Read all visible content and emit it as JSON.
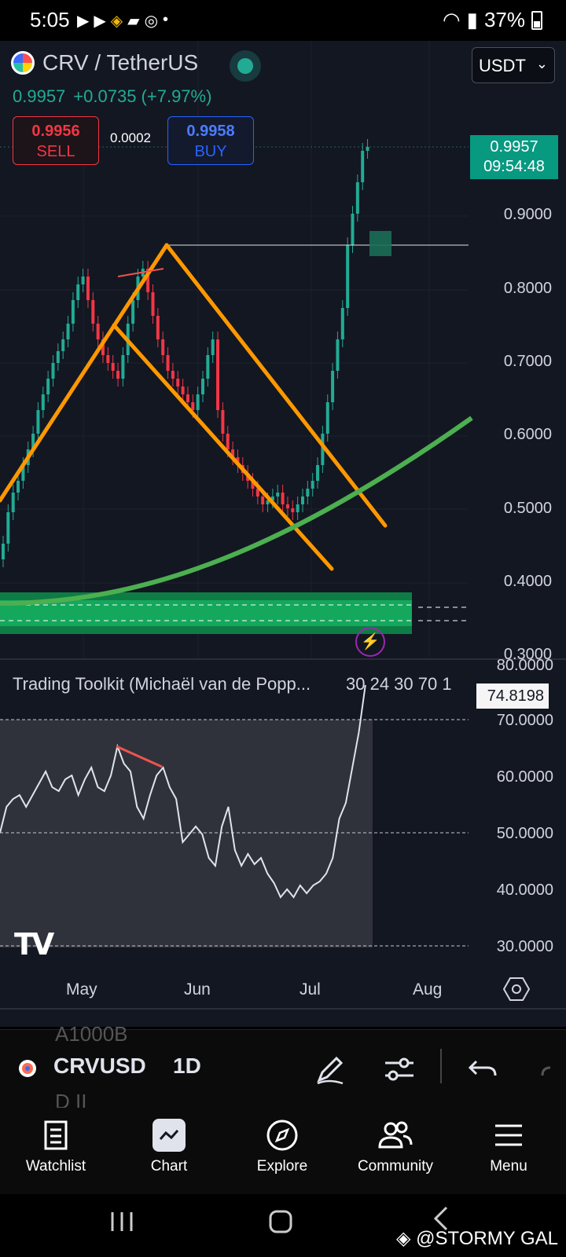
{
  "status_bar": {
    "time": "5:05",
    "battery": "37%",
    "left_icons": [
      "youtube-icon",
      "youtube-icon",
      "binance-icon",
      "cards-icon",
      "coinmarketcap-icon",
      "dot-icon"
    ],
    "right_icons": [
      "wifi-icon",
      "signal-icon",
      "battery-icon"
    ]
  },
  "header": {
    "symbol_title": "CRV / TetherUS",
    "currency": "USDT",
    "last_price": "0.9957",
    "change": "+0.0735 (+7.97%)",
    "sell_price": "0.9956",
    "sell_label": "SELL",
    "spread": "0.0002",
    "buy_price": "0.9958",
    "buy_label": "BUY"
  },
  "price_tag": {
    "price": "0.9957",
    "countdown": "09:54:48"
  },
  "price_axis": [
    "0.9000",
    "0.8000",
    "0.7000",
    "0.6000",
    "0.5000",
    "0.4000",
    "0.3000"
  ],
  "oscillator": {
    "title": "Trading Toolkit (Michaël van de Popp...",
    "params": "30 24 30 70 1",
    "current_value": "74.8198",
    "axis": [
      "80.0000",
      "70.0000",
      "60.0000",
      "50.0000",
      "40.0000",
      "30.0000"
    ]
  },
  "time_axis": [
    "May",
    "Jun",
    "Jul",
    "Aug"
  ],
  "tv_logo_text": "TV",
  "toolbar": {
    "ghost_top": "A1000B",
    "symbol": "CRVUSD",
    "interval": "1D",
    "ghost_bottom": "D II",
    "icons": [
      "pencil-icon",
      "sliders-icon",
      "undo-icon",
      "redo-icon"
    ]
  },
  "nav": {
    "items": [
      {
        "label": "Watchlist",
        "icon": "watchlist-icon"
      },
      {
        "label": "Chart",
        "icon": "chart-icon"
      },
      {
        "label": "Explore",
        "icon": "compass-icon"
      },
      {
        "label": "Community",
        "icon": "community-icon"
      },
      {
        "label": "Menu",
        "icon": "menu-icon"
      }
    ]
  },
  "watermark": "@STORMY GAL",
  "colors": {
    "background": "#131722",
    "up": "#22ab94",
    "down": "#f23645",
    "pattern_lines": "#ff9800",
    "curve": "#4caf50",
    "support_zone": "#0f9d58"
  }
}
